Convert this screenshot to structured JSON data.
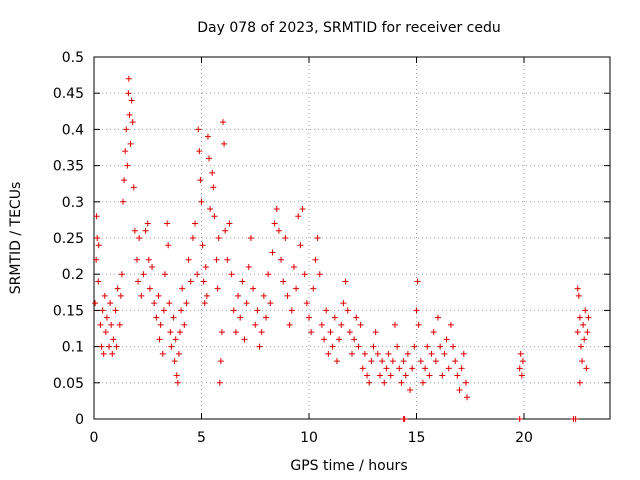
{
  "chart_data": {
    "type": "scatter",
    "title": "Day 078 of 2023, SRMTID for receiver cedu",
    "xlabel": "GPS time / hours",
    "ylabel": "SRMTID / TECUs",
    "xlim": [
      0,
      24
    ],
    "ylim": [
      0,
      0.5
    ],
    "grid": true,
    "marker": "+",
    "color": "#dd0000",
    "x_ticks": [
      {
        "value": 0,
        "label": "0"
      },
      {
        "value": 5,
        "label": "5"
      },
      {
        "value": 10,
        "label": "10"
      },
      {
        "value": 15,
        "label": "15"
      },
      {
        "value": 20,
        "label": "20"
      }
    ],
    "y_ticks": [
      {
        "value": 0,
        "label": "0"
      },
      {
        "value": 0.05,
        "label": "0.05"
      },
      {
        "value": 0.1,
        "label": "0.1"
      },
      {
        "value": 0.15,
        "label": "0.15"
      },
      {
        "value": 0.2,
        "label": "0.2"
      },
      {
        "value": 0.25,
        "label": "0.25"
      },
      {
        "value": 0.3,
        "label": "0.3"
      },
      {
        "value": 0.35,
        "label": "0.35"
      },
      {
        "value": 0.4,
        "label": "0.4"
      },
      {
        "value": 0.45,
        "label": "0.45"
      },
      {
        "value": 0.5,
        "label": "0.5"
      }
    ],
    "points": [
      [
        0.05,
        0.16
      ],
      [
        0.1,
        0.22
      ],
      [
        0.12,
        0.28
      ],
      [
        0.15,
        0.25
      ],
      [
        0.2,
        0.19
      ],
      [
        0.22,
        0.24
      ],
      [
        0.3,
        0.13
      ],
      [
        0.35,
        0.1
      ],
      [
        0.4,
        0.15
      ],
      [
        0.45,
        0.09
      ],
      [
        0.5,
        0.17
      ],
      [
        0.55,
        0.12
      ],
      [
        0.6,
        0.14
      ],
      [
        0.7,
        0.1
      ],
      [
        0.75,
        0.16
      ],
      [
        0.8,
        0.13
      ],
      [
        0.85,
        0.09
      ],
      [
        0.9,
        0.11
      ],
      [
        1.0,
        0.15
      ],
      [
        1.05,
        0.1
      ],
      [
        1.1,
        0.18
      ],
      [
        1.2,
        0.13
      ],
      [
        1.25,
        0.17
      ],
      [
        1.3,
        0.2
      ],
      [
        1.35,
        0.3
      ],
      [
        1.4,
        0.33
      ],
      [
        1.45,
        0.37
      ],
      [
        1.5,
        0.4
      ],
      [
        1.55,
        0.35
      ],
      [
        1.6,
        0.45
      ],
      [
        1.62,
        0.47
      ],
      [
        1.65,
        0.42
      ],
      [
        1.7,
        0.38
      ],
      [
        1.75,
        0.44
      ],
      [
        1.8,
        0.41
      ],
      [
        1.85,
        0.32
      ],
      [
        1.9,
        0.26
      ],
      [
        2.0,
        0.22
      ],
      [
        2.05,
        0.19
      ],
      [
        2.1,
        0.25
      ],
      [
        2.2,
        0.17
      ],
      [
        2.3,
        0.2
      ],
      [
        2.4,
        0.26
      ],
      [
        2.5,
        0.27
      ],
      [
        2.55,
        0.22
      ],
      [
        2.6,
        0.18
      ],
      [
        2.7,
        0.21
      ],
      [
        2.8,
        0.16
      ],
      [
        2.9,
        0.14
      ],
      [
        3.0,
        0.17
      ],
      [
        3.05,
        0.11
      ],
      [
        3.1,
        0.13
      ],
      [
        3.2,
        0.09
      ],
      [
        3.25,
        0.15
      ],
      [
        3.3,
        0.2
      ],
      [
        3.4,
        0.27
      ],
      [
        3.45,
        0.24
      ],
      [
        3.5,
        0.16
      ],
      [
        3.55,
        0.12
      ],
      [
        3.6,
        0.1
      ],
      [
        3.7,
        0.14
      ],
      [
        3.75,
        0.08
      ],
      [
        3.8,
        0.11
      ],
      [
        3.85,
        0.06
      ],
      [
        3.9,
        0.05
      ],
      [
        3.95,
        0.09
      ],
      [
        4.0,
        0.12
      ],
      [
        4.05,
        0.15
      ],
      [
        4.1,
        0.18
      ],
      [
        4.2,
        0.13
      ],
      [
        4.3,
        0.16
      ],
      [
        4.4,
        0.22
      ],
      [
        4.5,
        0.19
      ],
      [
        4.6,
        0.25
      ],
      [
        4.7,
        0.27
      ],
      [
        4.8,
        0.2
      ],
      [
        4.85,
        0.4
      ],
      [
        4.9,
        0.37
      ],
      [
        4.95,
        0.33
      ],
      [
        5.0,
        0.3
      ],
      [
        5.05,
        0.24
      ],
      [
        5.1,
        0.19
      ],
      [
        5.15,
        0.16
      ],
      [
        5.2,
        0.21
      ],
      [
        5.25,
        0.17
      ],
      [
        5.3,
        0.39
      ],
      [
        5.35,
        0.36
      ],
      [
        5.4,
        0.29
      ],
      [
        5.5,
        0.34
      ],
      [
        5.55,
        0.32
      ],
      [
        5.6,
        0.28
      ],
      [
        5.7,
        0.22
      ],
      [
        5.75,
        0.18
      ],
      [
        5.8,
        0.25
      ],
      [
        5.85,
        0.05
      ],
      [
        5.9,
        0.08
      ],
      [
        5.95,
        0.12
      ],
      [
        6.0,
        0.41
      ],
      [
        6.05,
        0.38
      ],
      [
        6.1,
        0.26
      ],
      [
        6.2,
        0.22
      ],
      [
        6.3,
        0.27
      ],
      [
        6.4,
        0.2
      ],
      [
        6.5,
        0.15
      ],
      [
        6.6,
        0.12
      ],
      [
        6.7,
        0.17
      ],
      [
        6.8,
        0.14
      ],
      [
        6.9,
        0.19
      ],
      [
        7.0,
        0.11
      ],
      [
        7.1,
        0.16
      ],
      [
        7.2,
        0.21
      ],
      [
        7.3,
        0.25
      ],
      [
        7.4,
        0.18
      ],
      [
        7.5,
        0.13
      ],
      [
        7.6,
        0.15
      ],
      [
        7.7,
        0.1
      ],
      [
        7.8,
        0.12
      ],
      [
        7.9,
        0.17
      ],
      [
        8.0,
        0.14
      ],
      [
        8.1,
        0.2
      ],
      [
        8.2,
        0.16
      ],
      [
        8.3,
        0.23
      ],
      [
        8.4,
        0.27
      ],
      [
        8.5,
        0.29
      ],
      [
        8.6,
        0.26
      ],
      [
        8.7,
        0.22
      ],
      [
        8.8,
        0.19
      ],
      [
        8.9,
        0.25
      ],
      [
        9.0,
        0.17
      ],
      [
        9.1,
        0.13
      ],
      [
        9.2,
        0.15
      ],
      [
        9.3,
        0.21
      ],
      [
        9.4,
        0.18
      ],
      [
        9.5,
        0.28
      ],
      [
        9.6,
        0.24
      ],
      [
        9.7,
        0.29
      ],
      [
        9.8,
        0.2
      ],
      [
        9.9,
        0.16
      ],
      [
        10.0,
        0.14
      ],
      [
        10.1,
        0.12
      ],
      [
        10.2,
        0.18
      ],
      [
        10.3,
        0.22
      ],
      [
        10.4,
        0.25
      ],
      [
        10.5,
        0.2
      ],
      [
        10.6,
        0.13
      ],
      [
        10.7,
        0.11
      ],
      [
        10.8,
        0.15
      ],
      [
        10.9,
        0.09
      ],
      [
        11.0,
        0.12
      ],
      [
        11.1,
        0.1
      ],
      [
        11.2,
        0.14
      ],
      [
        11.3,
        0.08
      ],
      [
        11.4,
        0.11
      ],
      [
        11.5,
        0.13
      ],
      [
        11.6,
        0.16
      ],
      [
        11.7,
        0.19
      ],
      [
        11.8,
        0.15
      ],
      [
        11.9,
        0.12
      ],
      [
        12.0,
        0.09
      ],
      [
        12.1,
        0.11
      ],
      [
        12.2,
        0.14
      ],
      [
        12.3,
        0.1
      ],
      [
        12.4,
        0.13
      ],
      [
        12.5,
        0.07
      ],
      [
        12.6,
        0.09
      ],
      [
        12.7,
        0.06
      ],
      [
        12.8,
        0.05
      ],
      [
        12.9,
        0.08
      ],
      [
        13.0,
        0.1
      ],
      [
        13.1,
        0.12
      ],
      [
        13.2,
        0.09
      ],
      [
        13.3,
        0.06
      ],
      [
        13.4,
        0.08
      ],
      [
        13.5,
        0.05
      ],
      [
        13.6,
        0.07
      ],
      [
        13.7,
        0.09
      ],
      [
        13.8,
        0.06
      ],
      [
        13.9,
        0.08
      ],
      [
        14.0,
        0.13
      ],
      [
        14.1,
        0.1
      ],
      [
        14.2,
        0.07
      ],
      [
        14.3,
        0.05
      ],
      [
        14.4,
        0.08
      ],
      [
        14.5,
        0.06
      ],
      [
        14.6,
        0.09
      ],
      [
        14.7,
        0.04
      ],
      [
        14.8,
        0.07
      ],
      [
        14.9,
        0.1
      ],
      [
        15.0,
        0.15
      ],
      [
        15.05,
        0.19
      ],
      [
        15.1,
        0.13
      ],
      [
        15.2,
        0.08
      ],
      [
        15.3,
        0.05
      ],
      [
        15.4,
        0.07
      ],
      [
        15.5,
        0.1
      ],
      [
        15.6,
        0.06
      ],
      [
        15.7,
        0.09
      ],
      [
        15.8,
        0.12
      ],
      [
        15.9,
        0.08
      ],
      [
        16.0,
        0.14
      ],
      [
        16.1,
        0.1
      ],
      [
        16.2,
        0.06
      ],
      [
        16.3,
        0.09
      ],
      [
        16.4,
        0.11
      ],
      [
        16.5,
        0.07
      ],
      [
        16.6,
        0.13
      ],
      [
        16.7,
        0.1
      ],
      [
        16.8,
        0.08
      ],
      [
        16.9,
        0.06
      ],
      [
        17.0,
        0.04
      ],
      [
        17.1,
        0.07
      ],
      [
        17.2,
        0.09
      ],
      [
        17.3,
        0.05
      ],
      [
        17.35,
        0.03
      ],
      [
        14.4,
        0.0
      ],
      [
        14.45,
        0.0
      ],
      [
        19.8,
        0.07
      ],
      [
        19.85,
        0.09
      ],
      [
        19.9,
        0.06
      ],
      [
        19.95,
        0.08
      ],
      [
        19.8,
        0.0
      ],
      [
        22.3,
        0.0
      ],
      [
        22.4,
        0.0
      ],
      [
        22.5,
        0.12
      ],
      [
        22.55,
        0.17
      ],
      [
        22.6,
        0.14
      ],
      [
        22.65,
        0.1
      ],
      [
        22.7,
        0.08
      ],
      [
        22.75,
        0.13
      ],
      [
        22.8,
        0.11
      ],
      [
        22.85,
        0.15
      ],
      [
        22.9,
        0.07
      ],
      [
        22.95,
        0.12
      ],
      [
        23.0,
        0.14
      ],
      [
        22.5,
        0.18
      ],
      [
        22.6,
        0.05
      ]
    ]
  }
}
